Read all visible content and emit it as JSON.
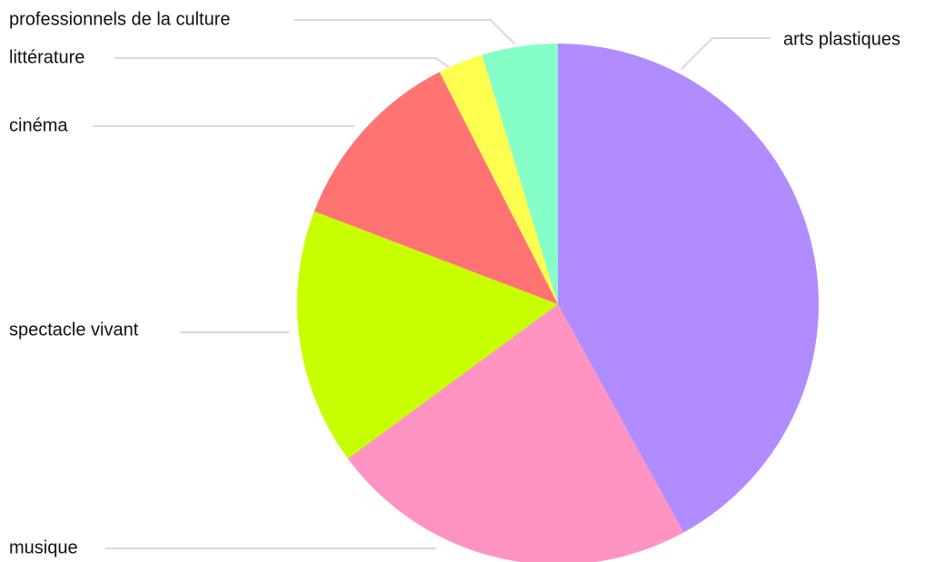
{
  "chart_data": {
    "type": "pie",
    "title": "",
    "start_angle_deg": 0,
    "direction": "clockwise",
    "legend": "none",
    "slices": [
      {
        "label": "arts plastiques",
        "value": 42.0,
        "color": "#b18cfe"
      },
      {
        "label": "musique",
        "value": 22.9,
        "color": "#ff93c1"
      },
      {
        "label": "spectacle vivant",
        "value": 15.9,
        "color": "#c8ff00"
      },
      {
        "label": "cinéma",
        "value": 11.7,
        "color": "#ff7373"
      },
      {
        "label": "littérature",
        "value": 2.8,
        "color": "#ffff50"
      },
      {
        "label": "professionnels de la culture",
        "value": 4.7,
        "color": "#85ffc7"
      }
    ]
  }
}
